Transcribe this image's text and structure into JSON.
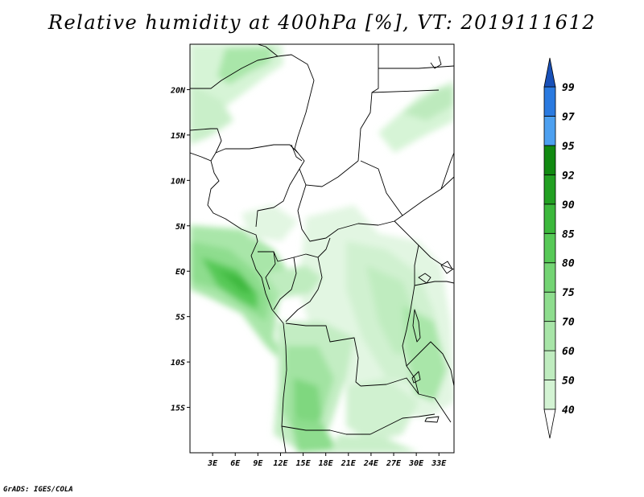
{
  "title": "Relative humidity at 400hPa [%], VT: 2019111612",
  "credit": "GrADS: IGES/COLA",
  "map": {
    "lon_range": [
      0,
      35
    ],
    "lat_range": [
      -20,
      25
    ],
    "lon_ticks": [
      "3E",
      "6E",
      "9E",
      "12E",
      "15E",
      "18E",
      "21E",
      "24E",
      "27E",
      "30E",
      "33E"
    ],
    "lat_ticks": [
      "20N",
      "15N",
      "10N",
      "5N",
      "EQ",
      "5S",
      "10S",
      "15S"
    ]
  },
  "colorbar": {
    "levels": [
      "40",
      "50",
      "60",
      "70",
      "75",
      "80",
      "85",
      "90",
      "92",
      "95",
      "97",
      "99"
    ],
    "colors": [
      "#ecfaec",
      "#d3f3d3",
      "#bfecbf",
      "#a8e5a8",
      "#8edd8e",
      "#74d474",
      "#57c957",
      "#3cb83c",
      "#22a022",
      "#118a11",
      "#4da0f0",
      "#2a7ae0",
      "#1850b8"
    ]
  }
}
